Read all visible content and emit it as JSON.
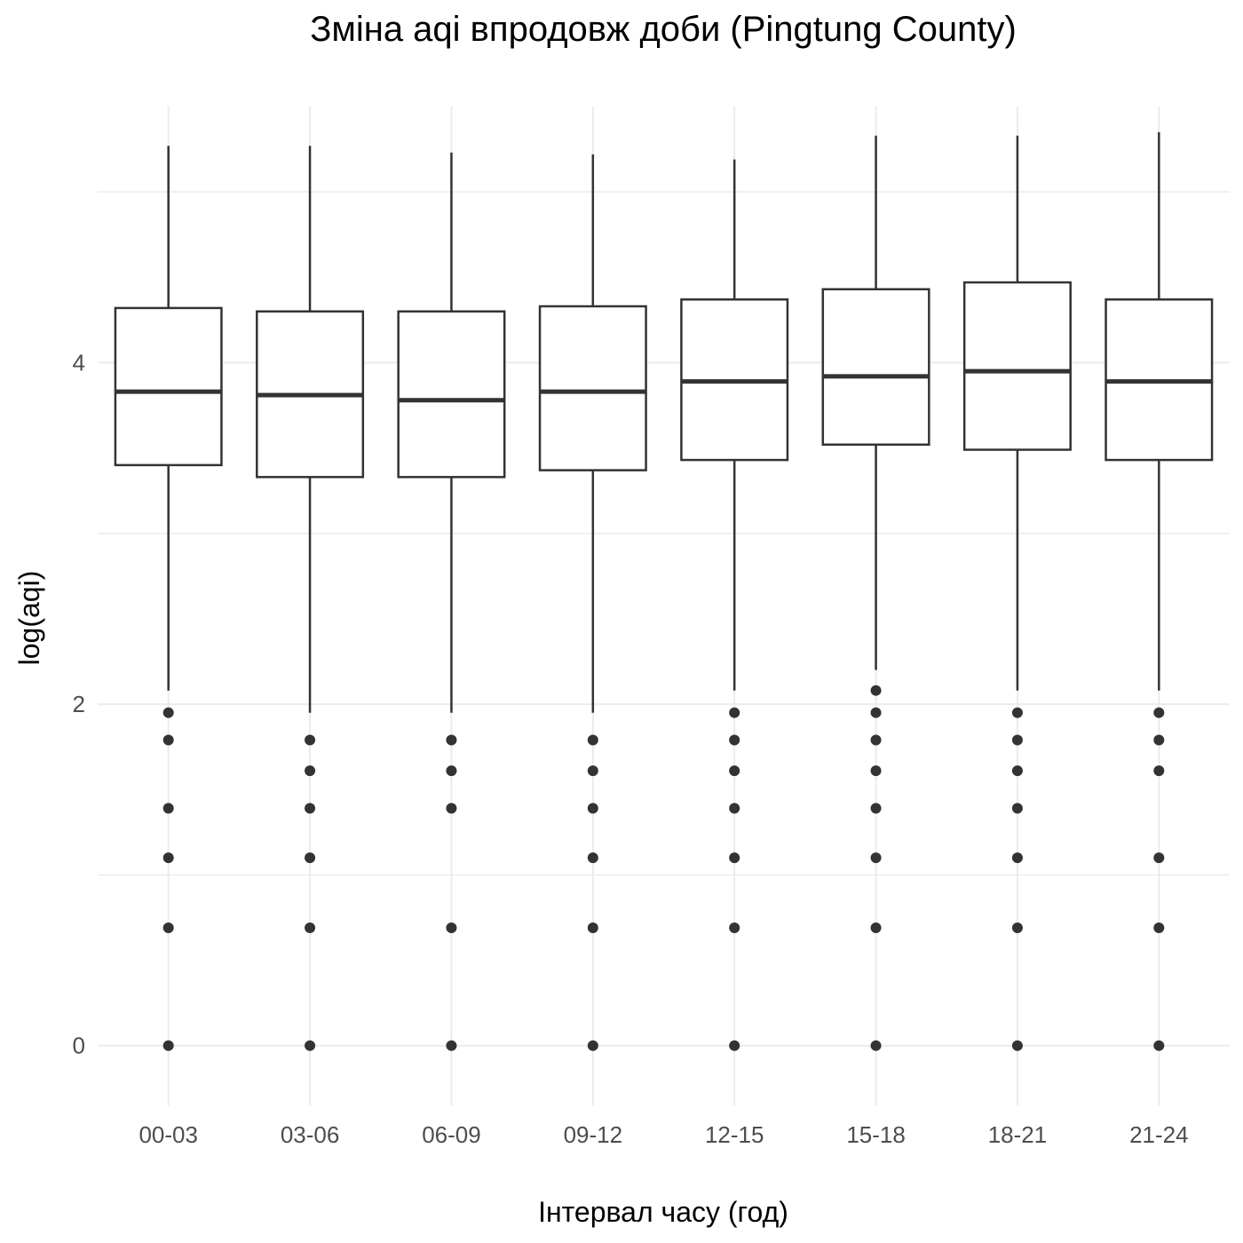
{
  "chart_data": {
    "type": "boxplot",
    "title": "Зміна aqi впродовж доби (Pingtung County)",
    "xlabel": "Інтервал часу (год)",
    "ylabel": "log(aqi)",
    "ylim": [
      -0.35,
      5.5
    ],
    "yticks": [
      0,
      2,
      4
    ],
    "grid": true,
    "categories": [
      "00-03",
      "03-06",
      "06-09",
      "09-12",
      "12-15",
      "15-18",
      "18-21",
      "21-24"
    ],
    "boxes": [
      {
        "category": "00-03",
        "whisker_low": 2.08,
        "q1": 3.4,
        "median": 3.83,
        "q3": 4.32,
        "whisker_high": 5.27,
        "outliers": [
          1.95,
          1.79,
          1.39,
          1.1,
          0.69,
          0.0
        ]
      },
      {
        "category": "03-06",
        "whisker_low": 1.95,
        "q1": 3.33,
        "median": 3.81,
        "q3": 4.3,
        "whisker_high": 5.27,
        "outliers": [
          1.79,
          1.61,
          1.39,
          1.1,
          0.69,
          0.0
        ]
      },
      {
        "category": "06-09",
        "whisker_low": 1.95,
        "q1": 3.33,
        "median": 3.78,
        "q3": 4.3,
        "whisker_high": 5.23,
        "outliers": [
          1.79,
          1.61,
          1.39,
          0.69,
          0.0
        ]
      },
      {
        "category": "09-12",
        "whisker_low": 1.95,
        "q1": 3.37,
        "median": 3.83,
        "q3": 4.33,
        "whisker_high": 5.22,
        "outliers": [
          1.79,
          1.61,
          1.39,
          1.1,
          0.69,
          0.0
        ]
      },
      {
        "category": "12-15",
        "whisker_low": 2.08,
        "q1": 3.43,
        "median": 3.89,
        "q3": 4.37,
        "whisker_high": 5.19,
        "outliers": [
          1.95,
          1.79,
          1.61,
          1.39,
          1.1,
          0.69,
          0.0
        ]
      },
      {
        "category": "15-18",
        "whisker_low": 2.2,
        "q1": 3.52,
        "median": 3.92,
        "q3": 4.43,
        "whisker_high": 5.33,
        "outliers": [
          2.08,
          1.95,
          1.79,
          1.61,
          1.39,
          1.1,
          0.69,
          0.0
        ]
      },
      {
        "category": "18-21",
        "whisker_low": 2.08,
        "q1": 3.49,
        "median": 3.95,
        "q3": 4.47,
        "whisker_high": 5.33,
        "outliers": [
          1.95,
          1.79,
          1.61,
          1.39,
          1.1,
          0.69,
          0.0
        ]
      },
      {
        "category": "21-24",
        "whisker_low": 2.08,
        "q1": 3.43,
        "median": 3.89,
        "q3": 4.37,
        "whisker_high": 5.35,
        "outliers": [
          1.95,
          1.79,
          1.61,
          1.1,
          0.69,
          0.0
        ]
      }
    ]
  }
}
